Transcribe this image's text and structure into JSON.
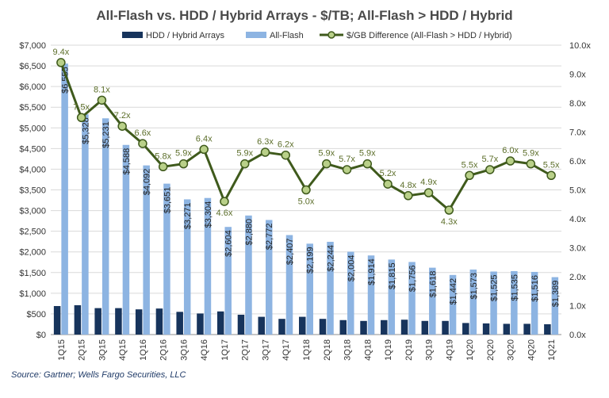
{
  "chart_data": {
    "type": "bar",
    "title": "All-Flash vs. HDD / Hybrid Arrays - $/TB; All-Flash > HDD / Hybrid",
    "categories": [
      "1Q15",
      "2Q15",
      "3Q15",
      "4Q15",
      "1Q16",
      "2Q16",
      "3Q16",
      "4Q16",
      "1Q17",
      "2Q17",
      "3Q17",
      "4Q17",
      "1Q18",
      "2Q18",
      "3Q18",
      "4Q18",
      "1Q19",
      "2Q19",
      "3Q19",
      "4Q19",
      "1Q20",
      "2Q20",
      "3Q20",
      "4Q20",
      "1Q21"
    ],
    "series": [
      {
        "name": "HDD / Hybrid Arrays",
        "kind": "bar",
        "color": "#17345c",
        "values": [
          690,
          710,
          640,
          640,
          610,
          630,
          550,
          510,
          560,
          480,
          430,
          380,
          430,
          380,
          350,
          330,
          350,
          360,
          330,
          330,
          280,
          270,
          260,
          260,
          250
        ]
      },
      {
        "name": "All-Flash",
        "kind": "bar",
        "color": "#8db4e2",
        "values": [
          6555,
          5328,
          5231,
          4588,
          4092,
          3651,
          3271,
          3304,
          2604,
          2880,
          2772,
          2407,
          2199,
          2244,
          2004,
          1914,
          1815,
          1756,
          1618,
          1442,
          1573,
          1525,
          1535,
          1516,
          1389
        ],
        "labels": [
          "$6,555",
          "$5,328",
          "$5,231",
          "$4,588",
          "$4,092",
          "$3,651",
          "$3,271",
          "$3,304",
          "$2,604",
          "$2,880",
          "$2,772",
          "$2,407",
          "$2,199",
          "$2,244",
          "$2,004",
          "$1,914",
          "$1,815",
          "$1,756",
          "$1,618",
          "$1,442",
          "$1,573",
          "$1,525",
          "$1,535",
          "$1,516",
          "$1,389"
        ]
      },
      {
        "name": "$/GB Difference (All-Flash > HDD / Hybrid)",
        "kind": "line",
        "axis": "right",
        "color": "#3f5a1c",
        "marker_color": "#b9d089",
        "values": [
          9.4,
          7.5,
          8.1,
          7.2,
          6.6,
          5.8,
          5.9,
          6.4,
          4.6,
          5.9,
          6.3,
          6.2,
          5.0,
          5.9,
          5.7,
          5.9,
          5.2,
          4.8,
          4.9,
          4.3,
          5.5,
          5.7,
          6.0,
          5.9,
          5.5
        ],
        "labels": [
          "9.4x",
          "7.5x",
          "8.1x",
          "7.2x",
          "6.6x",
          "5.8x",
          "5.9x",
          "6.4x",
          "4.6x",
          "5.9x",
          "6.3x",
          "6.2x",
          "5.0x",
          "5.9x",
          "5.7x",
          "5.9x",
          "5.2x",
          "4.8x",
          "4.9x",
          "4.3x",
          "5.5x",
          "5.7x",
          "6.0x",
          "5.9x",
          "5.5x"
        ]
      }
    ],
    "y_left": {
      "min": 0,
      "max": 7000,
      "step": 500,
      "tick_labels": [
        "$0",
        "$500",
        "$1,000",
        "$1,500",
        "$2,000",
        "$2,500",
        "$3,000",
        "$3,500",
        "$4,000",
        "$4,500",
        "$5,000",
        "$5,500",
        "$6,000",
        "$6,500",
        "$7,000"
      ]
    },
    "y_right": {
      "min": 0,
      "max": 10,
      "step": 1,
      "tick_labels": [
        "0.0x",
        "1.0x",
        "2.0x",
        "3.0x",
        "4.0x",
        "5.0x",
        "6.0x",
        "7.0x",
        "8.0x",
        "9.0x",
        "10.0x"
      ]
    },
    "grid": true,
    "legend_position": "top",
    "source": "Source: Gartner; Wells Fargo Securities, LLC"
  }
}
